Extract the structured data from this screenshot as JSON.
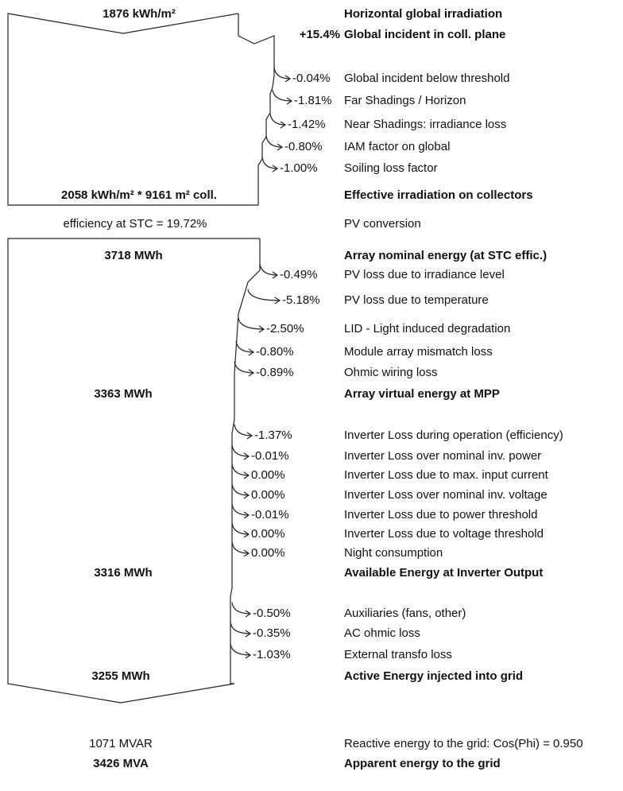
{
  "rows": [
    {
      "value": "1876 kWh/m²",
      "label": "Horizontal global irradiation"
    },
    {
      "value": "+15.4%",
      "label": "Global incident in coll. plane"
    },
    {
      "value": "-0.04%",
      "label": "Global incident below threshold"
    },
    {
      "value": "-1.81%",
      "label": "Far Shadings / Horizon"
    },
    {
      "value": "-1.42%",
      "label": "Near Shadings: irradiance loss"
    },
    {
      "value": "-0.80%",
      "label": "IAM factor on global"
    },
    {
      "value": "-1.00%",
      "label": "Soiling loss factor"
    },
    {
      "value": "2058 kWh/m² * 9161 m² coll.",
      "label": "Effective irradiation on collectors"
    },
    {
      "value": "efficiency at STC = 19.72%",
      "label": "PV conversion"
    },
    {
      "value": "3718 MWh",
      "label": "Array nominal energy (at STC effic.)"
    },
    {
      "value": "-0.49%",
      "label": "PV loss due to irradiance level"
    },
    {
      "value": "-5.18%",
      "label": "PV loss due to temperature"
    },
    {
      "value": "-2.50%",
      "label": "LID - Light induced degradation"
    },
    {
      "value": "-0.80%",
      "label": "Module array mismatch loss"
    },
    {
      "value": "-0.89%",
      "label": "Ohmic wiring loss"
    },
    {
      "value": "3363 MWh",
      "label": "Array virtual energy at MPP"
    },
    {
      "value": "-1.37%",
      "label": "Inverter Loss during operation (efficiency)"
    },
    {
      "value": "-0.01%",
      "label": "Inverter Loss over nominal inv. power"
    },
    {
      "value": "0.00%",
      "label": "Inverter Loss due to max. input current"
    },
    {
      "value": "0.00%",
      "label": "Inverter Loss over nominal inv. voltage"
    },
    {
      "value": "-0.01%",
      "label": "Inverter Loss due to power threshold"
    },
    {
      "value": "0.00%",
      "label": "Inverter Loss due to voltage threshold"
    },
    {
      "value": "0.00%",
      "label": "Night consumption"
    },
    {
      "value": "3316 MWh",
      "label": "Available Energy at Inverter Output"
    },
    {
      "value": "-0.50%",
      "label": "Auxiliaries (fans, other)"
    },
    {
      "value": "-0.35%",
      "label": "AC ohmic loss"
    },
    {
      "value": "-1.03%",
      "label": "External transfo loss"
    },
    {
      "value": "3255 MWh",
      "label": "Active Energy injected into grid"
    },
    {
      "value": "1071 MVAR",
      "label": "Reactive energy to the grid: Cos(Phi) = 0.950"
    },
    {
      "value": "3426 MVA",
      "label": "Apparent energy to the grid"
    }
  ]
}
